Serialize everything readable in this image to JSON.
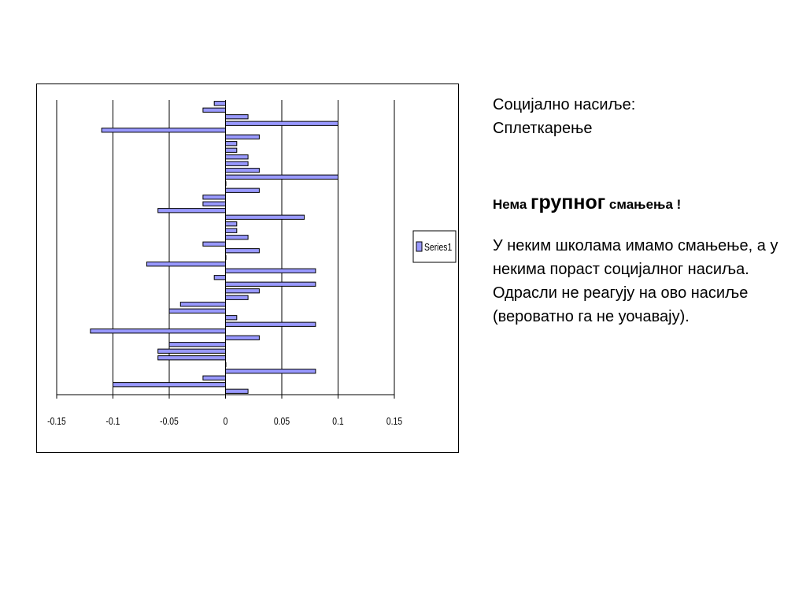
{
  "text": {
    "title_line1": "Социјално насиље:",
    "title_line2": "Сплеткарење",
    "heading_pre": "Нема ",
    "heading_big": "групног",
    "heading_post": " смањења !",
    "paragraph": "У неким школама имамо смањење, а у некима пораст социјалног насиља. Одрасли не реагују на ово насиље (вероватно га не уочавају)."
  },
  "colors": {
    "bar_fill": "#9999ff",
    "bar_stroke": "#000000",
    "gridline": "#000000"
  },
  "chart_data": {
    "type": "bar",
    "orientation": "horizontal",
    "series": [
      {
        "name": "Series1",
        "values": [
          -0.01,
          -0.02,
          0.02,
          0.1,
          -0.11,
          0.03,
          0.01,
          0.01,
          0.02,
          0.02,
          0.03,
          0.1,
          0,
          0.03,
          -0.02,
          -0.02,
          -0.06,
          0.07,
          0.01,
          0.01,
          0.02,
          -0.02,
          0.03,
          0,
          -0.07,
          0.08,
          -0.01,
          0.08,
          0.03,
          0.02,
          -0.04,
          -0.05,
          0.01,
          0.08,
          -0.12,
          0.03,
          -0.05,
          -0.06,
          -0.06,
          0,
          0.08,
          -0.02,
          -0.1,
          0.02
        ]
      }
    ],
    "xlim": [
      -0.15,
      0.15
    ],
    "xticks": [
      "-0.15",
      "-0.1",
      "-0.05",
      "0",
      "0.05",
      "0.1",
      "0.15"
    ],
    "grid": true,
    "legend": "right"
  }
}
